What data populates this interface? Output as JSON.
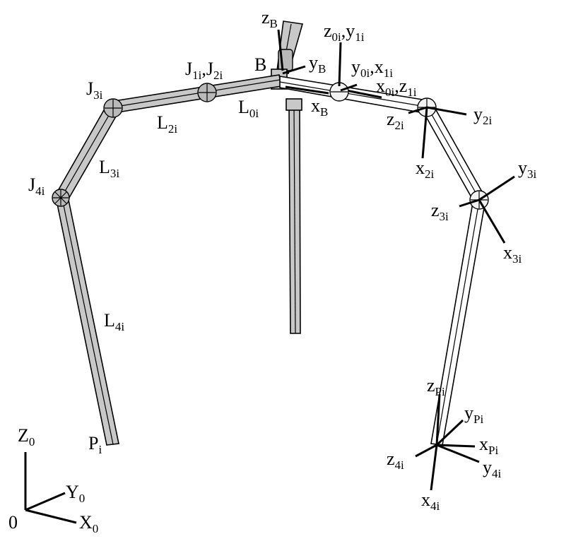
{
  "labels": {
    "zB": {
      "base": "z",
      "sub": "B"
    },
    "B": {
      "base": "B",
      "sub": ""
    },
    "yB": {
      "base": "y",
      "sub": "B"
    },
    "xB": {
      "base": "x",
      "sub": "B"
    },
    "L0i": {
      "base": "L",
      "sub": "0i"
    },
    "J1iJ2i": {
      "base": "J",
      "sub": "1i",
      "base2": ",J",
      "sub2": "2i"
    },
    "J3i": {
      "base": "J",
      "sub": "3i"
    },
    "L2i": {
      "base": "L",
      "sub": "2i"
    },
    "L3i": {
      "base": "L",
      "sub": "3i"
    },
    "J4i": {
      "base": "J",
      "sub": "4i"
    },
    "L4i": {
      "base": "L",
      "sub": "4i"
    },
    "Pi": {
      "base": "P",
      "sub": "i"
    },
    "z0iy1i": {
      "base": "z",
      "sub": "0i",
      "base2": ",y",
      "sub2": "1i"
    },
    "y0ix1i": {
      "base": "y",
      "sub": "0i",
      "base2": ",x",
      "sub2": "1i"
    },
    "x0iz1i": {
      "base": "x",
      "sub": "0i",
      "base2": ",z",
      "sub2": "1i"
    },
    "z2i": {
      "base": "z",
      "sub": "2i"
    },
    "y2i": {
      "base": "y",
      "sub": "2i"
    },
    "x2i": {
      "base": "x",
      "sub": "2i"
    },
    "y3i": {
      "base": "y",
      "sub": "3i"
    },
    "z3i": {
      "base": "z",
      "sub": "3i"
    },
    "x3i": {
      "base": "x",
      "sub": "3i"
    },
    "zPi": {
      "base": "z",
      "sub": "Pi"
    },
    "yPi": {
      "base": "y",
      "sub": "Pi"
    },
    "xPi": {
      "base": "x",
      "sub": "Pi"
    },
    "z4i": {
      "base": "z",
      "sub": "4i"
    },
    "y4i": {
      "base": "y",
      "sub": "4i"
    },
    "x4i": {
      "base": "x",
      "sub": "4i"
    },
    "Z0": {
      "base": "Z",
      "sub": "0"
    },
    "Y0": {
      "base": "Y",
      "sub": "0"
    },
    "X0": {
      "base": "X",
      "sub": "0"
    },
    "origin": {
      "base": "0",
      "sub": ""
    }
  }
}
